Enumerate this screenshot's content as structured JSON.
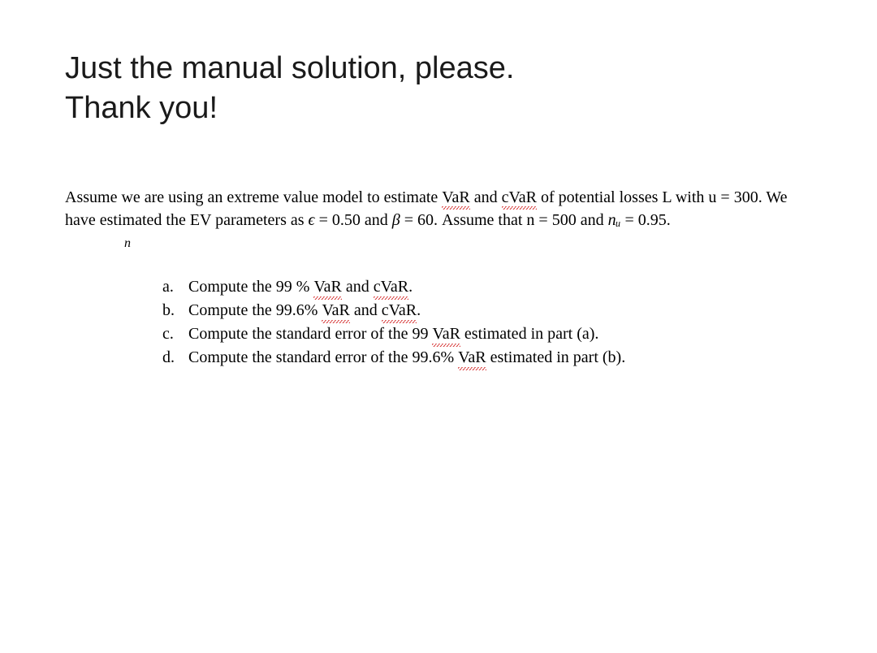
{
  "heading": {
    "line1": "Just the manual solution, please.",
    "line2": "Thank you!"
  },
  "intro": {
    "part1": "Assume we are using an extreme value model to estimate ",
    "var1": "VaR",
    "part2": " and ",
    "cvar1": "cVaR",
    "part3": " of potential losses L with u = 300.  We have estimated the EV parameters as ",
    "epsilon": "ϵ",
    "part4": " = 0.50 and ",
    "beta": "β",
    "part5": " = 60. Assume that n = 500 and ",
    "nu_num": "nᵤ",
    "part6": " = 0.95.",
    "denom": "n"
  },
  "items": [
    {
      "marker": "a.",
      "pre": "Compute the 99 % ",
      "w1": "VaR",
      "mid": " and ",
      "w2": "cVaR",
      "post": "."
    },
    {
      "marker": "b.",
      "pre": "Compute the 99.6% ",
      "w1": "VaR",
      "mid": " and ",
      "w2": "cVaR",
      "post": "."
    },
    {
      "marker": "c.",
      "pre": "Compute the standard error of the 99 ",
      "w1": "VaR",
      "mid": "",
      "w2": "",
      "post": " estimated in part (a)."
    },
    {
      "marker": "d.",
      "pre": "Compute the standard error of the 99.6% ",
      "w1": "VaR",
      "mid": "",
      "w2": "",
      "post": " estimated in part (b)."
    }
  ],
  "colors": {
    "text": "#000000",
    "squiggle": "#d01919",
    "background": "#ffffff"
  },
  "typography": {
    "heading_fontsize": 38,
    "body_fontsize": 20
  }
}
